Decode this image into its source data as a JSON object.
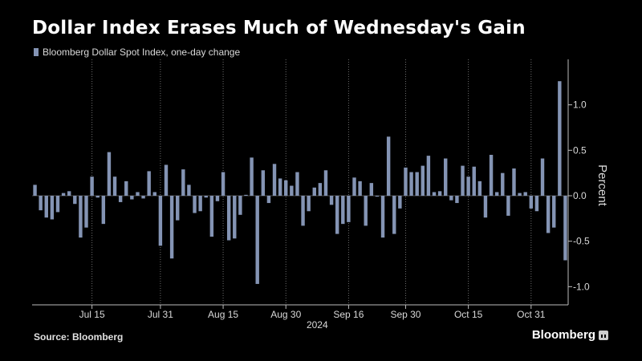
{
  "header": {
    "title": "Dollar Index Erases Much of Wednesday's Gain"
  },
  "footer": {
    "source": "Source: Bloomberg",
    "brand": "Bloomberg"
  },
  "colors": {
    "background": "#000000",
    "bar": "#8494b4",
    "grid": "#6d6d6d",
    "axis": "#bdbdbd"
  },
  "chart_data": {
    "type": "bar",
    "title": "Dollar Index Erases Much of Wednesday's Gain",
    "ylabel": "Percent",
    "xlabel": "",
    "y_axis_side": "right",
    "grid": "vertical dotted",
    "legend_position": "top-left",
    "ylim": [
      -1.2,
      1.5
    ],
    "y_ticks": [
      -1.0,
      -0.5,
      0.0,
      0.5,
      1.0
    ],
    "y_tick_labels": [
      "-1.0",
      "-0.5",
      "0.0",
      "0.5",
      "1.0"
    ],
    "x_tick_labels": [
      "Jul 15",
      "Jul 31",
      "Aug 15",
      "Aug 30",
      "Sep 16",
      "Sep 30",
      "Oct 15",
      "Oct 31"
    ],
    "x_tick_positions": [
      10,
      22,
      33,
      44,
      55,
      65,
      76,
      87
    ],
    "year_label": "2024",
    "year_label_position": 49.5,
    "series": [
      {
        "name": "Bloomberg Dollar Spot Index, one-day change",
        "values": [
          0.12,
          -0.16,
          -0.24,
          -0.26,
          -0.18,
          0.03,
          0.05,
          -0.09,
          -0.46,
          -0.35,
          0.21,
          -0.02,
          -0.31,
          0.48,
          0.21,
          -0.07,
          0.16,
          -0.04,
          0.04,
          -0.03,
          0.27,
          0.04,
          -0.55,
          0.34,
          -0.69,
          -0.27,
          0.29,
          0.12,
          -0.19,
          -0.17,
          -0.02,
          -0.45,
          -0.06,
          0.26,
          -0.49,
          -0.47,
          -0.21,
          0.01,
          0.42,
          -0.97,
          0.28,
          -0.08,
          0.35,
          0.19,
          0.17,
          0.11,
          0.26,
          -0.33,
          -0.17,
          0.09,
          0.14,
          0.28,
          -0.1,
          -0.42,
          -0.31,
          -0.29,
          0.2,
          0.16,
          -0.33,
          0.14,
          -0.01,
          -0.46,
          0.65,
          -0.42,
          -0.14,
          0.31,
          0.26,
          0.26,
          0.33,
          0.44,
          0.04,
          0.05,
          0.41,
          -0.05,
          -0.08,
          0.33,
          0.21,
          0.32,
          0.16,
          -0.24,
          0.45,
          0.04,
          0.25,
          -0.22,
          0.3,
          0.03,
          0.04,
          -0.14,
          -0.17,
          0.41,
          -0.41,
          -0.35,
          1.26,
          -0.71
        ]
      }
    ]
  }
}
